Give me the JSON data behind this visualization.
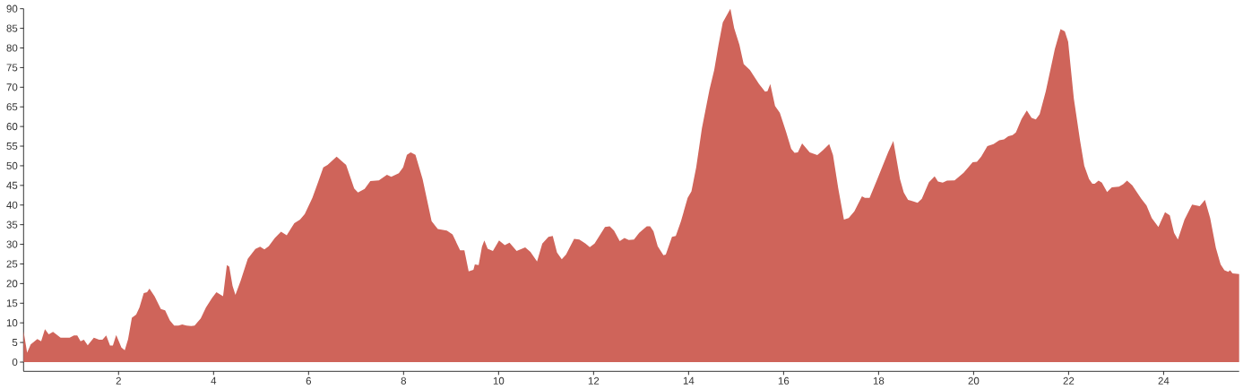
{
  "chart_data": {
    "type": "area",
    "color": "#cf645a",
    "xlim": [
      0,
      25.59
    ],
    "ylim": [
      -2.35,
      90
    ],
    "xticks": [
      2,
      4,
      6,
      8,
      10,
      12,
      14,
      16,
      18,
      20,
      22,
      24
    ],
    "yticks": [
      0,
      5,
      10,
      15,
      20,
      25,
      30,
      35,
      40,
      45,
      50,
      55,
      60,
      65,
      70,
      75,
      80,
      85,
      90
    ],
    "x": [
      0,
      0.075,
      0.15,
      0.29,
      0.37,
      0.45,
      0.53,
      0.62,
      0.78,
      0.97,
      1.06,
      1.13,
      1.2,
      1.27,
      1.35,
      1.48,
      1.59,
      1.66,
      1.74,
      1.82,
      1.88,
      1.95,
      2.06,
      2.13,
      2.2,
      2.28,
      2.37,
      2.44,
      2.53,
      2.6,
      2.65,
      2.76,
      2.89,
      2.98,
      3.08,
      3.17,
      3.26,
      3.34,
      3.43,
      3.53,
      3.6,
      3.73,
      3.84,
      3.97,
      4.06,
      4.2,
      4.28,
      4.33,
      4.4,
      4.46,
      4.57,
      4.72,
      4.88,
      4.98,
      5.07,
      5.16,
      5.29,
      5.42,
      5.54,
      5.7,
      5.82,
      5.92,
      6.08,
      6.2,
      6.31,
      6.4,
      6.59,
      6.79,
      6.96,
      7.04,
      7.18,
      7.3,
      7.48,
      7.65,
      7.74,
      7.9,
      7.99,
      8.07,
      8.15,
      8.25,
      8.4,
      8.59,
      8.72,
      8.91,
      9.03,
      9.19,
      9.28,
      9.37,
      9.47,
      9.5,
      9.58,
      9.65,
      9.7,
      9.77,
      9.88,
      10.01,
      10.13,
      10.23,
      10.38,
      10.56,
      10.67,
      10.81,
      10.92,
      11.05,
      11.14,
      11.23,
      11.33,
      11.42,
      11.59,
      11.7,
      11.83,
      11.92,
      12.02,
      12.24,
      12.34,
      12.43,
      12.55,
      12.65,
      12.74,
      12.85,
      12.96,
      13.12,
      13.19,
      13.26,
      13.35,
      13.47,
      13.52,
      13.65,
      13.73,
      13.84,
      13.98,
      14.06,
      14.16,
      14.28,
      14.44,
      14.54,
      14.63,
      14.72,
      14.88,
      14.96,
      15.07,
      15.16,
      15.29,
      15.48,
      15.61,
      15.66,
      15.72,
      15.82,
      15.92,
      16.05,
      16.16,
      16.23,
      16.3,
      16.39,
      16.55,
      16.71,
      16.83,
      16.96,
      17.04,
      17.15,
      17.27,
      17.37,
      17.49,
      17.65,
      17.71,
      17.81,
      17.96,
      18.2,
      18.31,
      18.45,
      18.53,
      18.62,
      18.72,
      18.82,
      18.91,
      19.06,
      19.18,
      19.25,
      19.35,
      19.44,
      19.6,
      19.79,
      19.98,
      20.07,
      20.16,
      20.29,
      20.42,
      20.54,
      20.64,
      20.73,
      20.82,
      20.89,
      21.01,
      21.12,
      21.22,
      21.31,
      21.39,
      21.52,
      21.71,
      21.83,
      21.92,
      21.99,
      22.11,
      22.24,
      22.33,
      22.43,
      22.5,
      22.55,
      22.63,
      22.7,
      22.81,
      22.91,
      23.06,
      23.15,
      23.23,
      23.34,
      23.53,
      23.64,
      23.75,
      23.89,
      24.03,
      24.13,
      24.22,
      24.3,
      24.44,
      24.6,
      24.76,
      24.87,
      24.98,
      25.1,
      25.2,
      25.28,
      25.36,
      25.4,
      25.45,
      25.59
    ],
    "values": [
      7.9,
      2.4,
      4.5,
      5.9,
      5.3,
      8.4,
      7.1,
      7.7,
      6.2,
      6.2,
      6.8,
      6.8,
      5.3,
      5.7,
      4.3,
      6.2,
      5.7,
      5.7,
      6.8,
      4.2,
      4.2,
      6.9,
      3.7,
      3.0,
      5.8,
      11.3,
      12.1,
      13.9,
      17.6,
      17.8,
      18.7,
      16.7,
      13.5,
      13.2,
      10.6,
      9.3,
      9.3,
      9.6,
      9.3,
      9.2,
      9.3,
      11.1,
      13.9,
      16.4,
      17.8,
      16.8,
      24.7,
      24.3,
      19.4,
      17.1,
      20.7,
      26.3,
      28.8,
      29.4,
      28.7,
      29.5,
      31.6,
      33.2,
      32.3,
      35.4,
      36.3,
      37.7,
      41.8,
      45.8,
      49.6,
      50.2,
      52.3,
      50.2,
      44.2,
      43.2,
      44.1,
      46.1,
      46.3,
      47.7,
      47.2,
      48.1,
      49.6,
      52.8,
      53.4,
      52.8,
      46.6,
      35.9,
      33.9,
      33.5,
      32.5,
      28.5,
      28.5,
      23.1,
      23.5,
      24.9,
      24.7,
      29.4,
      31.0,
      28.9,
      28.3,
      31.0,
      29.8,
      30.4,
      28.3,
      29.2,
      28.1,
      25.6,
      30.2,
      31.9,
      32.1,
      27.9,
      26.2,
      27.4,
      31.4,
      31.2,
      30.2,
      29.3,
      30.2,
      34.4,
      34.6,
      33.5,
      30.8,
      31.6,
      31.1,
      31.2,
      32.9,
      34.6,
      34.6,
      33.3,
      29.5,
      27.2,
      27.4,
      31.9,
      32.1,
      35.9,
      41.8,
      43.5,
      49.6,
      59.5,
      69.4,
      74.4,
      80.8,
      86.5,
      90.0,
      85.0,
      80.8,
      75.9,
      74.4,
      70.9,
      68.9,
      69.0,
      70.8,
      65.2,
      63.5,
      58.7,
      54.3,
      53.3,
      53.4,
      55.7,
      53.4,
      52.7,
      54.0,
      55.5,
      52.7,
      44.3,
      36.3,
      36.7,
      38.4,
      42.2,
      41.8,
      41.8,
      46.2,
      53.4,
      56.3,
      46.6,
      43.2,
      41.3,
      41.0,
      40.6,
      41.6,
      45.8,
      47.3,
      46.0,
      45.7,
      46.2,
      46.3,
      48.2,
      50.9,
      51.0,
      52.3,
      55.0,
      55.5,
      56.5,
      56.7,
      57.5,
      57.8,
      58.5,
      61.9,
      64.1,
      62.2,
      61.8,
      63.1,
      69.0,
      79.7,
      84.8,
      84.2,
      81.6,
      67.1,
      56.5,
      50.0,
      46.6,
      45.4,
      45.4,
      46.2,
      45.7,
      43.3,
      44.5,
      44.7,
      45.3,
      46.2,
      45.0,
      41.6,
      39.9,
      36.7,
      34.4,
      38.2,
      37.4,
      32.9,
      31.2,
      36.3,
      40.1,
      39.7,
      41.3,
      36.7,
      29.1,
      24.9,
      23.4,
      23.0,
      23.4,
      22.6,
      22.4
    ]
  }
}
